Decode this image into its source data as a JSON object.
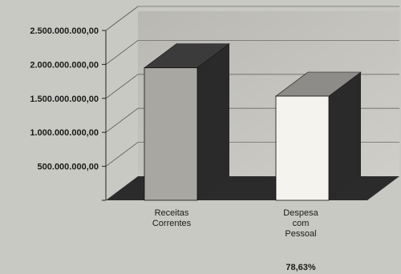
{
  "chart_data": {
    "type": "bar",
    "categories": [
      [
        "Receitas",
        "Correntes"
      ],
      [
        "Despesa",
        "com",
        "Pessoal"
      ]
    ],
    "values": [
      1950000000,
      1533000000
    ],
    "bar_front_colors": [
      "#a9a7a2",
      "#f4f3ee"
    ],
    "bar_side_colors": [
      "#2a2a2a",
      "#2a2a2a"
    ],
    "bar_top_colors": [
      "#3b3b3b",
      "#8e8c88"
    ],
    "y_ticks": [
      "",
      "500.000.000,00",
      "1.000.000.000,00",
      "1.500.000.000,00",
      "2.000.000.000,00",
      "2.500.000.000,00"
    ],
    "ylim": [
      0,
      2500000000
    ],
    "annotation": "78,63%",
    "grid": true
  }
}
